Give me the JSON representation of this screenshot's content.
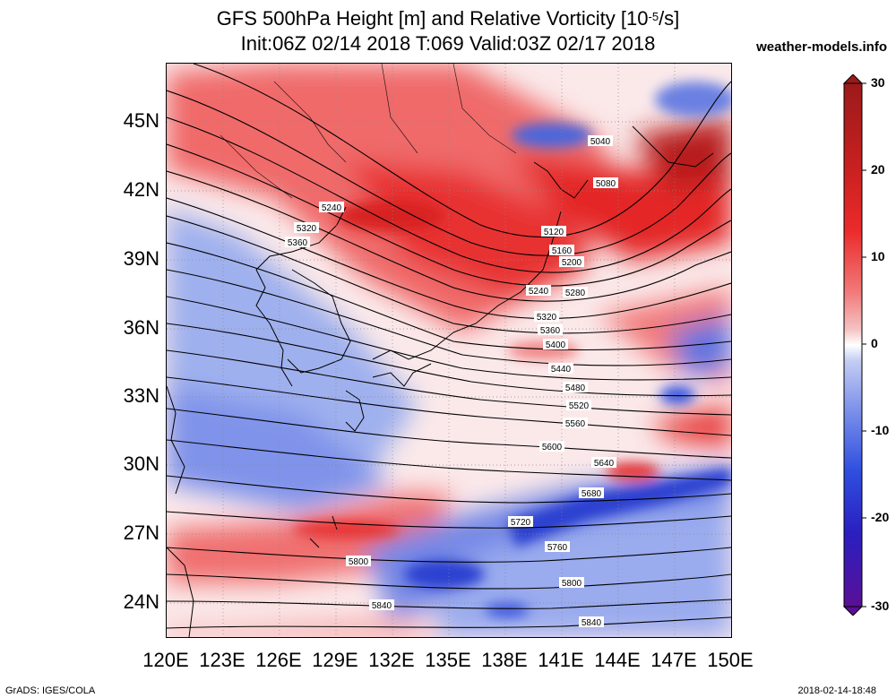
{
  "title": {
    "line1_prefix": "GFS 500hPa Height [m] and Relative Vorticity [10",
    "line1_exp": "-5",
    "line1_suffix": "/s]",
    "line2": "Init:06Z 02/14 2018 T:069 Valid:03Z 02/17 2018"
  },
  "site": "weather-models.info",
  "footer": {
    "left": "GrADS: IGES/COLA",
    "right": "2018-02-14-18:48"
  },
  "axes": {
    "lat_labels": [
      "45N",
      "42N",
      "39N",
      "36N",
      "33N",
      "30N",
      "27N",
      "24N"
    ],
    "lon_labels": [
      "120E",
      "123E",
      "126E",
      "129E",
      "132E",
      "135E",
      "138E",
      "141E",
      "144E",
      "147E",
      "150E"
    ]
  },
  "colorbar": {
    "labels": [
      "30",
      "20",
      "10",
      "0",
      "-10",
      "-20",
      "-30"
    ],
    "colors": [
      "#5a0f96",
      "#2a1fc0",
      "#2f4fe0",
      "#7f93ea",
      "#c4cdf3",
      "#ffffff",
      "#f5c2c2",
      "#f27a7a",
      "#eb2a2a",
      "#c82020",
      "#9c1a1a"
    ]
  },
  "contours": {
    "unit": "m",
    "labels": [
      "5040",
      "5080",
      "5120",
      "5160",
      "5200",
      "5240",
      "5280",
      "5320",
      "5360",
      "5400",
      "5440",
      "5480",
      "5520",
      "5560",
      "5600",
      "5640",
      "5680",
      "5720",
      "5760",
      "5800",
      "5840"
    ]
  }
}
